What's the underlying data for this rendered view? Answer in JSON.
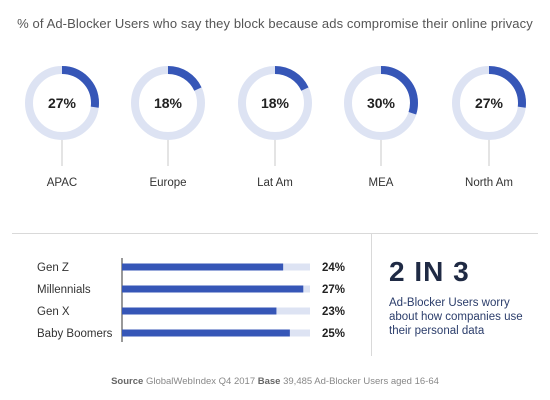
{
  "title": "% of Ad-Blocker Users who say they block because ads compromise their online privacy",
  "colors": {
    "accent": "#3656b7",
    "track": "#dde3f3",
    "text": "#333333"
  },
  "chart_data": [
    {
      "type": "pie",
      "title": "",
      "categories": [
        "APAC",
        "Europe",
        "Lat Am",
        "MEA",
        "North Am"
      ],
      "values": [
        27,
        18,
        18,
        30,
        27
      ],
      "value_labels": [
        "27%",
        "18%",
        "18%",
        "30%",
        "27%"
      ],
      "unit": "%"
    },
    {
      "type": "bar",
      "orientation": "horizontal",
      "categories": [
        "Gen Z",
        "Millennials",
        "Gen X",
        "Baby Boomers"
      ],
      "values": [
        24,
        27,
        23,
        25
      ],
      "value_labels": [
        "24%",
        "27%",
        "23%",
        "25%"
      ],
      "xlim": [
        0,
        28
      ]
    }
  ],
  "stat": {
    "headline": "2 IN 3",
    "description": "Ad-Blocker Users worry about how companies use their personal data"
  },
  "footer": {
    "source_label": "Source",
    "source_text": "GlobalWebIndex Q4 2017",
    "base_label": "Base",
    "base_text": "39,485 Ad-Blocker Users aged 16-64"
  }
}
